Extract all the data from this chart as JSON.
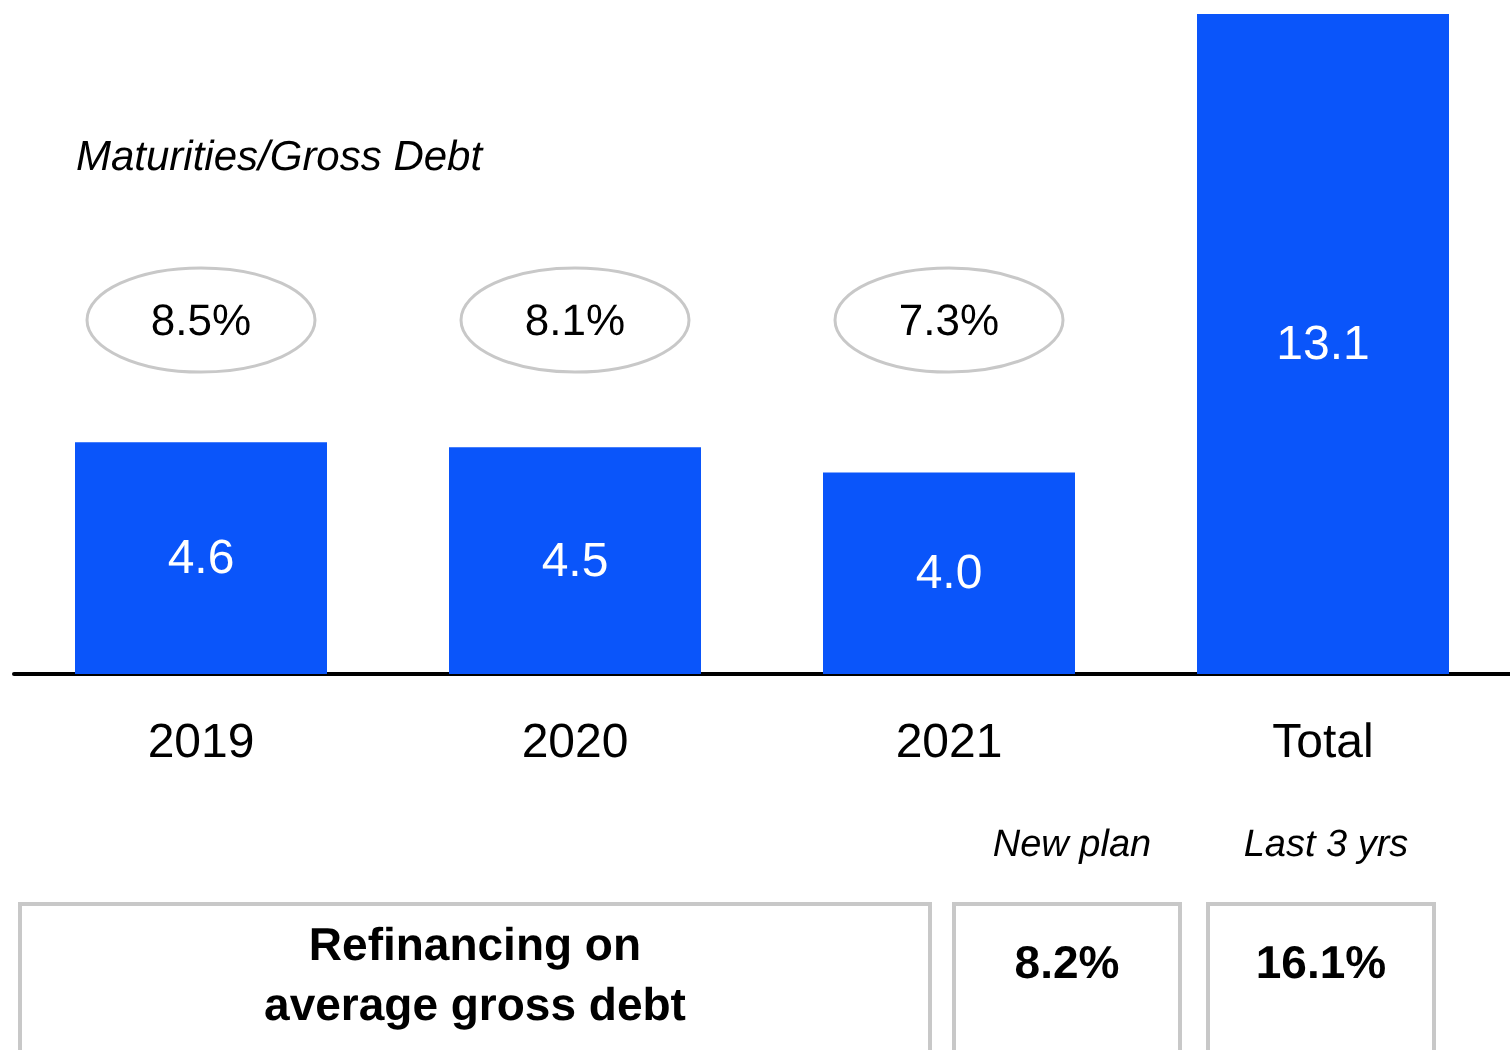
{
  "chart_data": {
    "type": "bar",
    "categories": [
      "2019",
      "2020",
      "2021",
      "Total"
    ],
    "values": [
      4.6,
      4.5,
      4.0,
      13.1
    ],
    "value_labels": [
      "4.6",
      "4.5",
      "4.0",
      "13.1"
    ],
    "color": "#0a55fa",
    "annotations": [
      "Maturities/Gross Debt",
      "8.5%",
      "8.1%",
      "7.3%",
      "New plan",
      "Last 3 yrs",
      "Refinancing on\naverage gross debt",
      "8.2%",
      "16.1%"
    ]
  }
}
